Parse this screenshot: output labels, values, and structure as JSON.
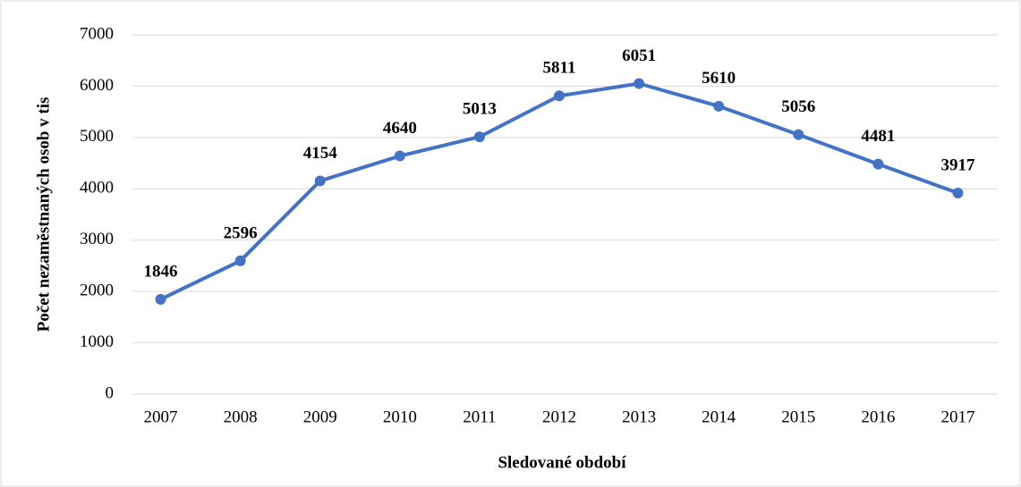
{
  "chart_data": {
    "type": "line",
    "x_label": "Sledované období",
    "y_label": "Počet nezaměstnaných osob v tis",
    "categories": [
      "2007",
      "2008",
      "2009",
      "2010",
      "2011",
      "2012",
      "2013",
      "2014",
      "2015",
      "2016",
      "2017"
    ],
    "series": [
      {
        "name": "Počet nezaměstnaných osob",
        "color": "#4472c4",
        "values": [
          1846,
          2596,
          4154,
          4640,
          5013,
          5811,
          6051,
          5610,
          5056,
          4481,
          3917
        ]
      }
    ],
    "ylim": [
      0,
      7000
    ],
    "yticks": [
      0,
      1000,
      2000,
      3000,
      4000,
      5000,
      6000,
      7000
    ],
    "grid": true
  }
}
